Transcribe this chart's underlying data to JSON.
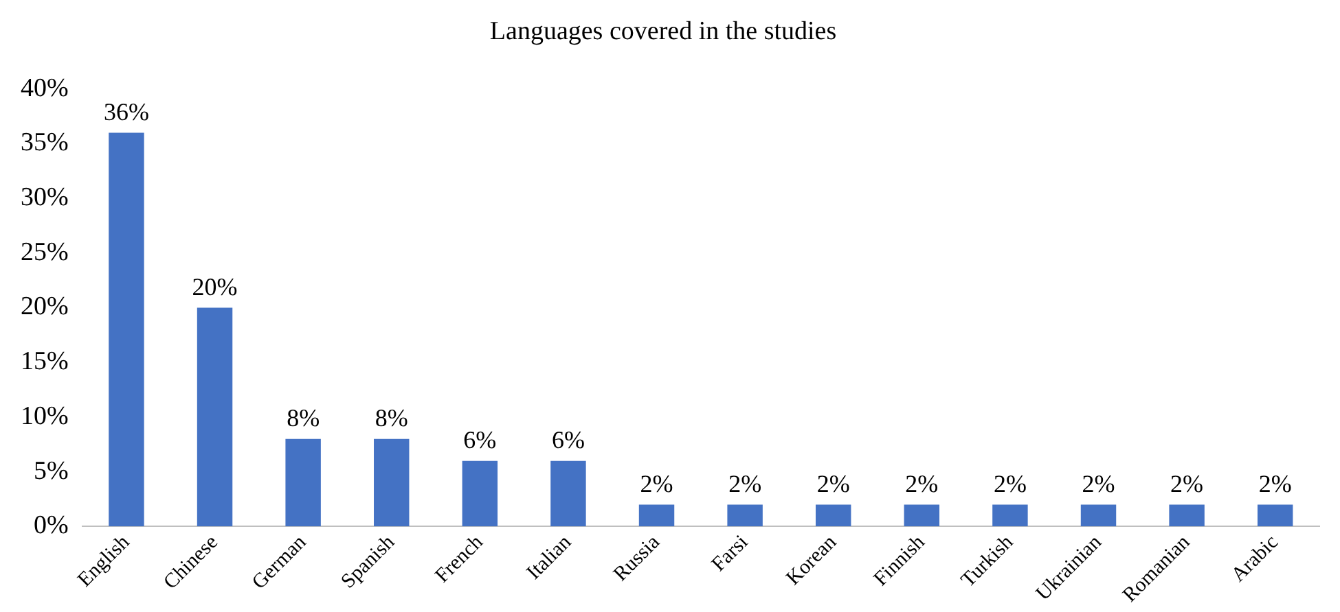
{
  "chart_data": {
    "type": "bar",
    "title": "Languages covered in the studies",
    "categories": [
      "English",
      "Chinese",
      "German",
      "Spanish",
      "French",
      "Italian",
      "Russia",
      "Farsi",
      "Korean",
      "Finnish",
      "Turkish",
      "Ukrainian",
      "Romanian",
      "Arabic"
    ],
    "values": [
      36,
      20,
      8,
      8,
      6,
      6,
      2,
      2,
      2,
      2,
      2,
      2,
      2,
      2
    ],
    "value_labels": [
      "36%",
      "20%",
      "8%",
      "8%",
      "6%",
      "6%",
      "2%",
      "2%",
      "2%",
      "2%",
      "2%",
      "2%",
      "2%",
      "2%"
    ],
    "color": "#4472c4",
    "ylim": [
      0,
      40
    ],
    "yticks": [
      {
        "value": 0,
        "label": "0%"
      },
      {
        "value": 5,
        "label": "5%"
      },
      {
        "value": 10,
        "label": "10%"
      },
      {
        "value": 15,
        "label": "15%"
      },
      {
        "value": 20,
        "label": "20%"
      },
      {
        "value": 25,
        "label": "25%"
      },
      {
        "value": 30,
        "label": "30%"
      },
      {
        "value": 35,
        "label": "35%"
      },
      {
        "value": 40,
        "label": "40%"
      }
    ],
    "grid": false,
    "legend": false
  }
}
